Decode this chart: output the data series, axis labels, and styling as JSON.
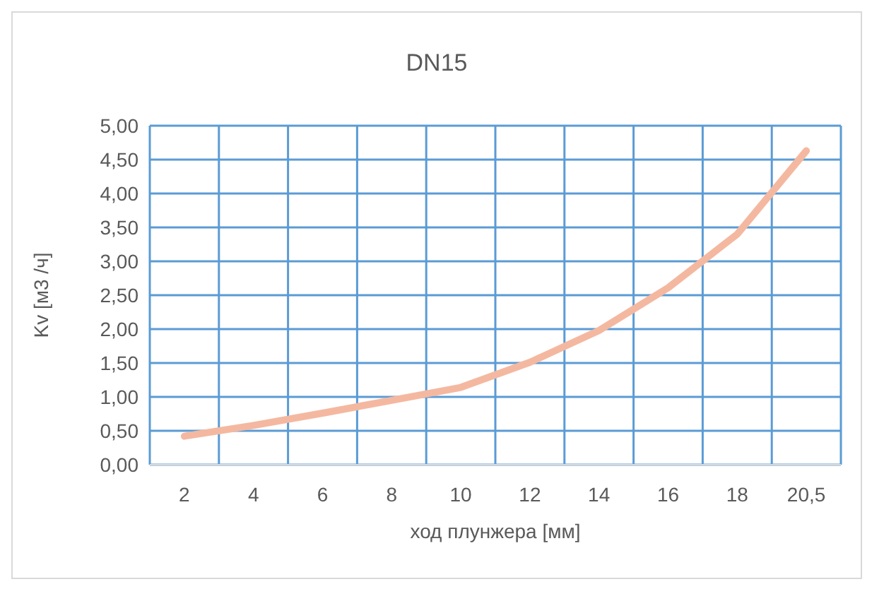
{
  "chart_data": {
    "type": "line",
    "title": "DN15",
    "xlabel": "ход плунжера [мм]",
    "ylabel": "Kv [м3 /ч]",
    "categories": [
      "2",
      "4",
      "6",
      "8",
      "10",
      "12",
      "14",
      "16",
      "18",
      "20,5"
    ],
    "series": [
      {
        "color": "#f4b8a0",
        "values": [
          0.42,
          0.58,
          0.76,
          0.95,
          1.14,
          1.51,
          1.98,
          2.61,
          3.4,
          4.63
        ]
      }
    ],
    "ylim": [
      0,
      5
    ],
    "yticks": [
      {
        "value": 0,
        "label": "0,00"
      },
      {
        "value": 0.5,
        "label": "0,50"
      },
      {
        "value": 1,
        "label": "1,00"
      },
      {
        "value": 1.5,
        "label": "1,50"
      },
      {
        "value": 2,
        "label": "2,00"
      },
      {
        "value": 2.5,
        "label": "2,50"
      },
      {
        "value": 3,
        "label": "3,00"
      },
      {
        "value": 3.5,
        "label": "3,50"
      },
      {
        "value": 4,
        "label": "4,00"
      },
      {
        "value": 4.5,
        "label": "4,50"
      },
      {
        "value": 5,
        "label": "5,00"
      }
    ],
    "grid": true,
    "marker": "none",
    "line_style": "solid"
  }
}
